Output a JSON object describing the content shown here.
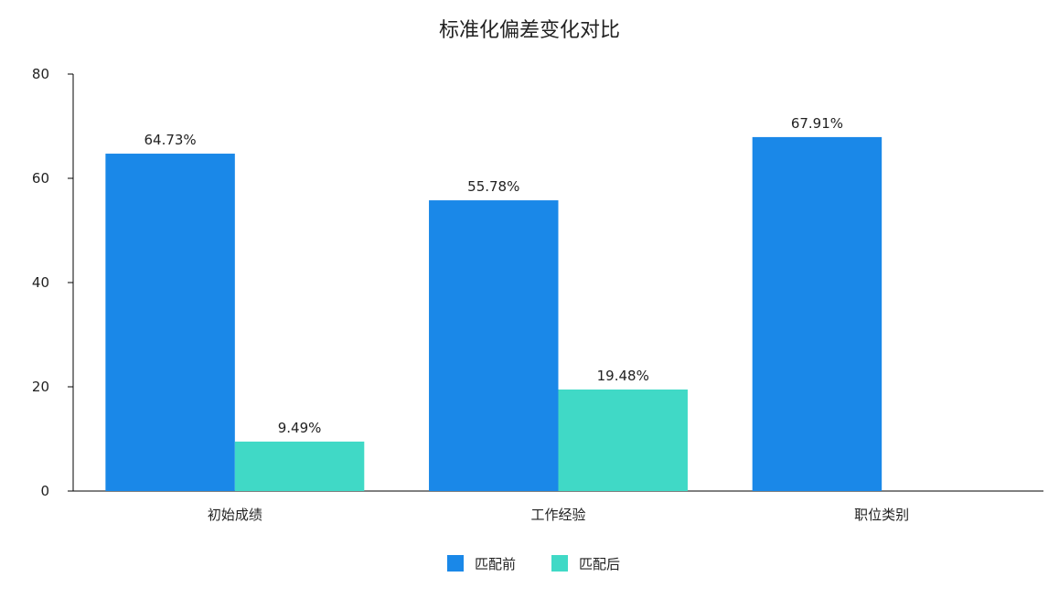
{
  "chart_data": {
    "type": "bar",
    "title": "标准化偏差变化对比",
    "xlabel": "",
    "ylabel": "",
    "categories": [
      "初始成绩",
      "工作经验",
      "职位类别"
    ],
    "series": [
      {
        "name": "匹配前",
        "values": [
          64.73,
          55.78,
          67.91
        ],
        "labels": [
          "64.73%",
          "55.78%",
          "67.91%"
        ],
        "color": "#1a88e8"
      },
      {
        "name": "匹配后",
        "values": [
          9.49,
          19.48,
          null
        ],
        "labels": [
          "9.49%",
          "19.48%",
          ""
        ],
        "color": "#40d9c6"
      }
    ],
    "ylim": [
      0,
      80
    ],
    "yticks": [
      0,
      20,
      40,
      60,
      80
    ],
    "ytick_labels": [
      "0",
      "20",
      "40",
      "60",
      "80"
    ],
    "grid": false,
    "legend_position": "bottom-center"
  }
}
